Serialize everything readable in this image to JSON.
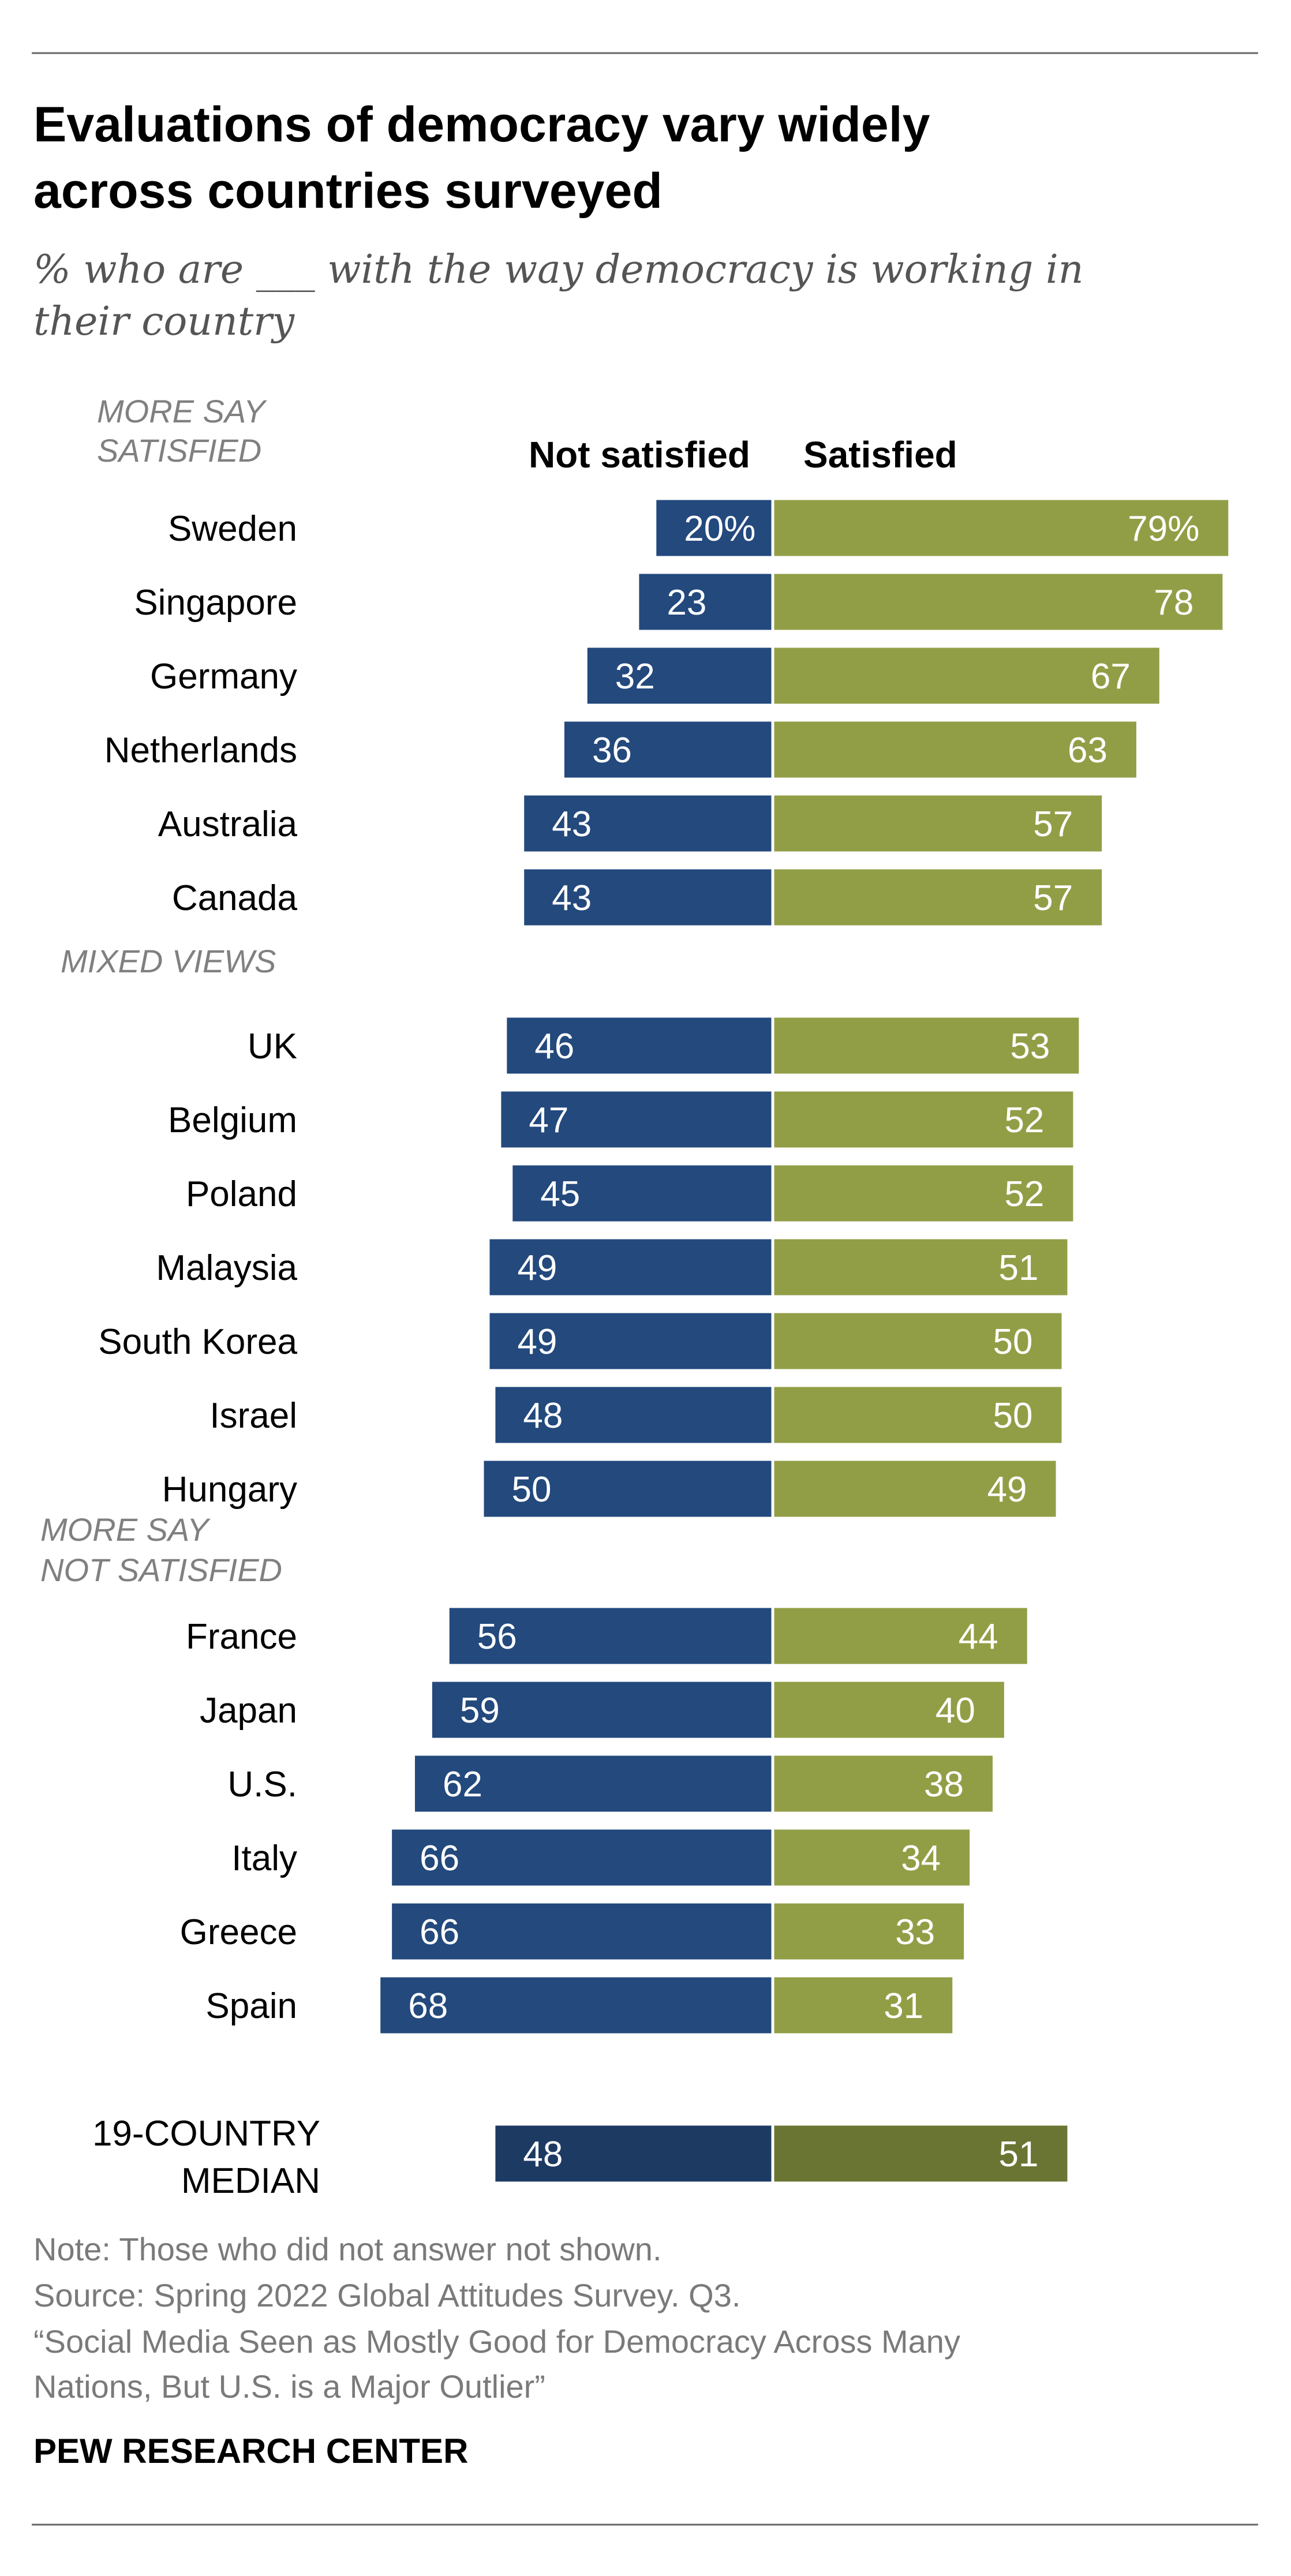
{
  "title_line1": "Evaluations of democracy vary widely",
  "title_line2": "across countries surveyed",
  "subtitle_line1": "% who are ___ with the way democracy is working in",
  "subtitle_line2": "their country",
  "colors": {
    "not_satisfied": "#23497d",
    "satisfied": "#929e46",
    "median_not_satisfied": "#1d3a63",
    "median_satisfied": "#6b7533",
    "rule": "#666666"
  },
  "chart_data": {
    "type": "bar",
    "orientation": "diverging-horizontal",
    "series": [
      {
        "name": "Not satisfied",
        "values": [
          20,
          23,
          32,
          36,
          43,
          43,
          46,
          47,
          45,
          49,
          49,
          48,
          50,
          56,
          59,
          62,
          66,
          66,
          68
        ]
      },
      {
        "name": "Satisfied",
        "values": [
          79,
          78,
          67,
          63,
          57,
          57,
          53,
          52,
          52,
          51,
          50,
          50,
          49,
          44,
          40,
          38,
          34,
          33,
          31
        ]
      }
    ],
    "categories": [
      "Sweden",
      "Singapore",
      "Germany",
      "Netherlands",
      "Australia",
      "Canada",
      "UK",
      "Belgium",
      "Poland",
      "Malaysia",
      "South Korea",
      "Israel",
      "Hungary",
      "France",
      "Japan",
      "U.S.",
      "Italy",
      "Greece",
      "Spain"
    ],
    "groups": [
      {
        "label_lines": [
          "MORE SAY",
          "SATISFIED"
        ],
        "rows": [
          {
            "country": "Sweden",
            "not_satisfied": 20,
            "satisfied": 79,
            "ns_label": "20%",
            "s_label": "79%"
          },
          {
            "country": "Singapore",
            "not_satisfied": 23,
            "satisfied": 78,
            "ns_label": "23",
            "s_label": "78"
          },
          {
            "country": "Germany",
            "not_satisfied": 32,
            "satisfied": 67,
            "ns_label": "32",
            "s_label": "67"
          },
          {
            "country": "Netherlands",
            "not_satisfied": 36,
            "satisfied": 63,
            "ns_label": "36",
            "s_label": "63"
          },
          {
            "country": "Australia",
            "not_satisfied": 43,
            "satisfied": 57,
            "ns_label": "43",
            "s_label": "57"
          },
          {
            "country": "Canada",
            "not_satisfied": 43,
            "satisfied": 57,
            "ns_label": "43",
            "s_label": "57"
          }
        ]
      },
      {
        "label_lines": [
          "MIXED VIEWS"
        ],
        "rows": [
          {
            "country": "UK",
            "not_satisfied": 46,
            "satisfied": 53,
            "ns_label": "46",
            "s_label": "53"
          },
          {
            "country": "Belgium",
            "not_satisfied": 47,
            "satisfied": 52,
            "ns_label": "47",
            "s_label": "52"
          },
          {
            "country": "Poland",
            "not_satisfied": 45,
            "satisfied": 52,
            "ns_label": "45",
            "s_label": "52"
          },
          {
            "country": "Malaysia",
            "not_satisfied": 49,
            "satisfied": 51,
            "ns_label": "49",
            "s_label": "51"
          },
          {
            "country": "South Korea",
            "not_satisfied": 49,
            "satisfied": 50,
            "ns_label": "49",
            "s_label": "50"
          },
          {
            "country": "Israel",
            "not_satisfied": 48,
            "satisfied": 50,
            "ns_label": "48",
            "s_label": "50"
          },
          {
            "country": "Hungary",
            "not_satisfied": 50,
            "satisfied": 49,
            "ns_label": "50",
            "s_label": "49"
          }
        ]
      },
      {
        "label_lines": [
          "MORE SAY",
          "NOT SATISFIED"
        ],
        "rows": [
          {
            "country": "France",
            "not_satisfied": 56,
            "satisfied": 44,
            "ns_label": "56",
            "s_label": "44"
          },
          {
            "country": "Japan",
            "not_satisfied": 59,
            "satisfied": 40,
            "ns_label": "59",
            "s_label": "40"
          },
          {
            "country": "U.S.",
            "not_satisfied": 62,
            "satisfied": 38,
            "ns_label": "62",
            "s_label": "38"
          },
          {
            "country": "Italy",
            "not_satisfied": 66,
            "satisfied": 34,
            "ns_label": "66",
            "s_label": "34"
          },
          {
            "country": "Greece",
            "not_satisfied": 66,
            "satisfied": 33,
            "ns_label": "66",
            "s_label": "33"
          },
          {
            "country": "Spain",
            "not_satisfied": 68,
            "satisfied": 31,
            "ns_label": "68",
            "s_label": "31"
          }
        ]
      }
    ],
    "median": {
      "label_lines": [
        "19-COUNTRY",
        "MEDIAN"
      ],
      "not_satisfied": 48,
      "satisfied": 51,
      "ns_label": "48",
      "s_label": "51"
    },
    "column_headers": {
      "not_satisfied": "Not satisfied",
      "satisfied": "Satisfied"
    },
    "xlim": [
      0,
      100
    ]
  },
  "note": "Note: Those who did not answer not shown.",
  "source": "Source: Spring 2022 Global Attitudes Survey. Q3.",
  "report_line1": "“Social Media Seen as Mostly Good for Democracy Across Many",
  "report_line2": "Nations, But U.S. is a Major Outlier”",
  "organization": "PEW RESEARCH CENTER"
}
